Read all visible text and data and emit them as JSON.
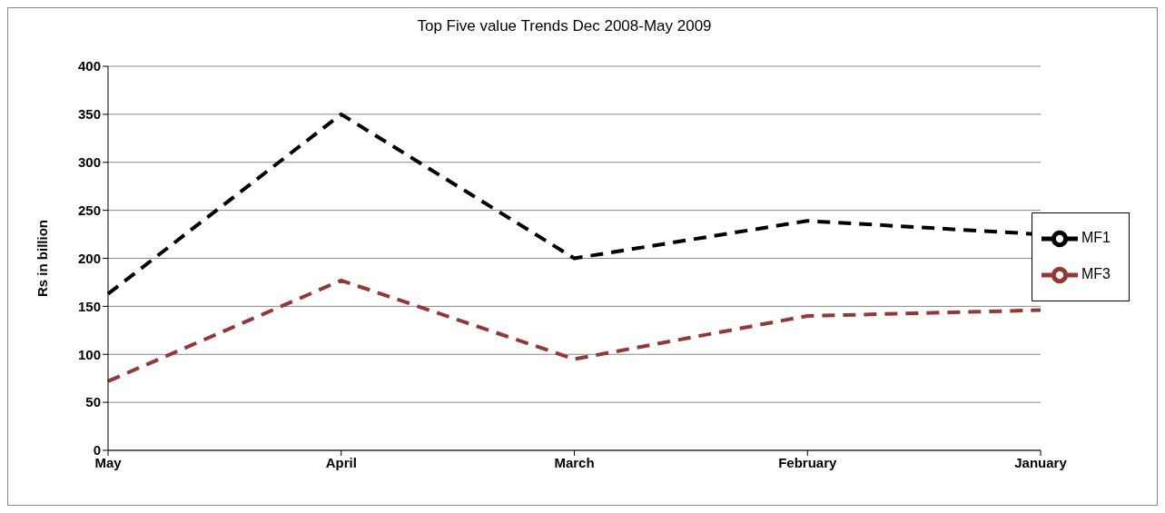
{
  "chart_data": {
    "type": "line",
    "title": "Top Five value Trends Dec 2008-May 2009",
    "ylabel": "Rs in billion",
    "categories": [
      "May",
      "April",
      "March",
      "February",
      "January"
    ],
    "series": [
      {
        "name": "MF1",
        "color": "#000000",
        "values": [
          163,
          350,
          200,
          239,
          225
        ]
      },
      {
        "name": "MF3",
        "color": "#953735",
        "values": [
          72,
          177,
          95,
          140,
          146
        ]
      }
    ],
    "ylim": [
      0,
      400
    ],
    "yticks": [
      0,
      50,
      100,
      150,
      200,
      250,
      300,
      350,
      400
    ],
    "grid": "y",
    "legend": "right",
    "line_style": "dashed",
    "marker": "none"
  }
}
